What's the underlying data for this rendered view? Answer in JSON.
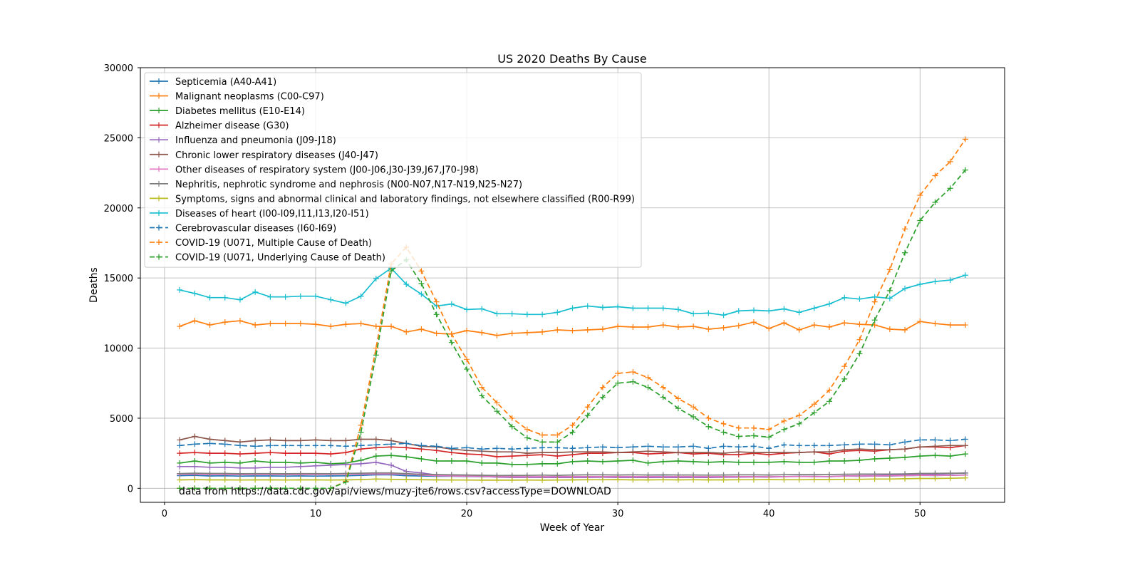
{
  "chart_data": {
    "type": "line",
    "title": "US 2020 Deaths By Cause",
    "xlabel": "Week of Year",
    "ylabel": "Deaths",
    "xlim": [
      -1.6,
      55.6
    ],
    "ylim": [
      -1000,
      30000
    ],
    "xticks": [
      0,
      10,
      20,
      30,
      40,
      50
    ],
    "yticks": [
      0,
      5000,
      10000,
      15000,
      20000,
      25000,
      30000
    ],
    "grid": true,
    "legend_position": "top-left",
    "annotation": "data from https://data.cdc.gov/api/views/muzy-jte6/rows.csv?accessType=DOWNLOAD",
    "x": [
      1,
      2,
      3,
      4,
      5,
      6,
      7,
      8,
      9,
      10,
      11,
      12,
      13,
      14,
      15,
      16,
      17,
      18,
      19,
      20,
      21,
      22,
      23,
      24,
      25,
      26,
      27,
      28,
      29,
      30,
      31,
      32,
      33,
      34,
      35,
      36,
      37,
      38,
      39,
      40,
      41,
      42,
      43,
      44,
      45,
      46,
      47,
      48,
      49,
      50,
      51,
      52,
      53
    ],
    "series": [
      {
        "name": "Septicemia (A40-A41)",
        "color": "#1f77b4",
        "dashed": false,
        "values": [
          900,
          920,
          880,
          890,
          870,
          880,
          880,
          870,
          880,
          870,
          880,
          890,
          920,
          960,
          960,
          900,
          880,
          860,
          860,
          840,
          830,
          820,
          830,
          820,
          820,
          830,
          830,
          830,
          840,
          820,
          830,
          840,
          850,
          830,
          840,
          820,
          830,
          840,
          830,
          820,
          840,
          850,
          850,
          830,
          870,
          860,
          870,
          880,
          900,
          920,
          910,
          930,
          950
        ]
      },
      {
        "name": "Malignant neoplasms (C00-C97)",
        "color": "#ff7f0e",
        "dashed": false,
        "values": [
          11550,
          11950,
          11650,
          11850,
          11950,
          11650,
          11750,
          11750,
          11750,
          11700,
          11550,
          11700,
          11750,
          11550,
          11550,
          11150,
          11350,
          11050,
          11000,
          11250,
          11100,
          10900,
          11050,
          11100,
          11150,
          11300,
          11250,
          11300,
          11350,
          11550,
          11500,
          11500,
          11650,
          11500,
          11550,
          11350,
          11450,
          11600,
          11850,
          11400,
          11800,
          11300,
          11650,
          11500,
          11800,
          11700,
          11650,
          11350,
          11300,
          11900,
          11750,
          11650,
          11650
        ]
      },
      {
        "name": "Diabetes mellitus (E10-E14)",
        "color": "#2ca02c",
        "dashed": false,
        "values": [
          1800,
          1950,
          1800,
          1850,
          1800,
          1950,
          1850,
          1850,
          1800,
          1850,
          1750,
          1800,
          2000,
          2300,
          2350,
          2250,
          2100,
          1950,
          1950,
          1950,
          1800,
          1800,
          1700,
          1700,
          1750,
          1750,
          1900,
          1950,
          1900,
          1950,
          2000,
          1800,
          1900,
          1950,
          1900,
          1850,
          1900,
          1850,
          1850,
          1850,
          1900,
          1850,
          1850,
          1950,
          1950,
          2000,
          2100,
          2150,
          2200,
          2300,
          2350,
          2300,
          2450
        ]
      },
      {
        "name": "Alzheimer disease (G30)",
        "color": "#d62728",
        "dashed": false,
        "values": [
          2500,
          2550,
          2500,
          2500,
          2450,
          2500,
          2550,
          2500,
          2500,
          2500,
          2450,
          2550,
          2800,
          2900,
          2950,
          2900,
          2800,
          2700,
          2550,
          2450,
          2400,
          2250,
          2300,
          2350,
          2400,
          2300,
          2400,
          2500,
          2500,
          2550,
          2550,
          2450,
          2500,
          2550,
          2450,
          2500,
          2400,
          2400,
          2500,
          2400,
          2500,
          2550,
          2600,
          2450,
          2650,
          2700,
          2650,
          2750,
          2800,
          2950,
          2950,
          2900,
          3050
        ]
      },
      {
        "name": "Influenza and pneumonia (J09-J18)",
        "color": "#9467bd",
        "dashed": false,
        "values": [
          1550,
          1550,
          1500,
          1500,
          1450,
          1450,
          1500,
          1500,
          1550,
          1600,
          1650,
          1700,
          1750,
          1850,
          1650,
          1200,
          1100,
          950,
          950,
          900,
          850,
          800,
          780,
          780,
          780,
          770,
          780,
          780,
          790,
          780,
          780,
          770,
          780,
          770,
          780,
          770,
          790,
          800,
          810,
          800,
          830,
          850,
          830,
          840,
          880,
          900,
          920,
          950,
          980,
          1000,
          1000,
          1050,
          1100
        ]
      },
      {
        "name": "Chronic lower respiratory diseases (J40-J47)",
        "color": "#8c564b",
        "dashed": false,
        "values": [
          3450,
          3700,
          3500,
          3400,
          3300,
          3400,
          3450,
          3400,
          3400,
          3450,
          3400,
          3400,
          3500,
          3500,
          3400,
          3200,
          3000,
          2950,
          2800,
          2700,
          2650,
          2600,
          2600,
          2500,
          2550,
          2550,
          2600,
          2600,
          2600,
          2550,
          2600,
          2650,
          2600,
          2550,
          2550,
          2550,
          2500,
          2600,
          2550,
          2550,
          2550,
          2550,
          2600,
          2600,
          2750,
          2800,
          2750,
          2750,
          2800,
          2950,
          3000,
          3050,
          3050
        ]
      },
      {
        "name": "Other diseases of respiratory system (J00-J06,J30-J39,J67,J70-J98)",
        "color": "#e377c2",
        "dashed": false,
        "values": [
          1000,
          1000,
          980,
          980,
          970,
          980,
          980,
          970,
          980,
          980,
          990,
          1000,
          1010,
          1020,
          1030,
          1000,
          950,
          900,
          880,
          860,
          850,
          840,
          830,
          830,
          830,
          830,
          840,
          840,
          840,
          840,
          840,
          840,
          840,
          830,
          840,
          830,
          840,
          840,
          840,
          830,
          840,
          850,
          850,
          840,
          870,
          880,
          880,
          890,
          900,
          930,
          920,
          920,
          940
        ]
      },
      {
        "name": "Nephritis, nephrotic syndrome and nephrosis (N00-N07,N17-N19,N25-N27)",
        "color": "#7f7f7f",
        "dashed": false,
        "values": [
          1050,
          1080,
          1060,
          1060,
          1040,
          1050,
          1050,
          1040,
          1050,
          1050,
          1040,
          1060,
          1080,
          1100,
          1100,
          1050,
          1000,
          980,
          960,
          950,
          930,
          910,
          920,
          920,
          940,
          920,
          950,
          960,
          960,
          950,
          960,
          950,
          960,
          950,
          950,
          940,
          950,
          960,
          960,
          950,
          970,
          980,
          980,
          980,
          1000,
          1010,
          1020,
          1020,
          1030,
          1060,
          1070,
          1080,
          1080
        ]
      },
      {
        "name": "Symptoms, signs and abnormal clinical and laboratory findings, not elsewhere classified (R00-R99)",
        "color": "#bcbd22",
        "dashed": false,
        "values": [
          600,
          620,
          600,
          600,
          590,
          600,
          600,
          590,
          600,
          600,
          590,
          600,
          620,
          660,
          640,
          620,
          610,
          600,
          590,
          590,
          580,
          580,
          580,
          590,
          580,
          590,
          600,
          610,
          610,
          620,
          600,
          600,
          610,
          600,
          610,
          600,
          600,
          610,
          610,
          620,
          610,
          610,
          620,
          620,
          640,
          640,
          660,
          660,
          680,
          700,
          700,
          720,
          740
        ]
      },
      {
        "name": "Diseases of heart (I00-I09,I11,I13,I20-I51)",
        "color": "#17becf",
        "dashed": false,
        "values": [
          14150,
          13900,
          13600,
          13600,
          13450,
          14000,
          13650,
          13650,
          13700,
          13700,
          13450,
          13200,
          13700,
          14950,
          15700,
          14550,
          13850,
          13000,
          13150,
          12750,
          12800,
          12450,
          12450,
          12400,
          12400,
          12550,
          12850,
          13000,
          12900,
          12950,
          12850,
          12850,
          12850,
          12750,
          12450,
          12500,
          12350,
          12650,
          12700,
          12650,
          12800,
          12550,
          12850,
          13150,
          13600,
          13500,
          13650,
          13550,
          14250,
          14550,
          14750,
          14850,
          15200
        ]
      },
      {
        "name": "Cerebrovascular diseases (I60-I69)",
        "color": "#1f77b4",
        "dashed": true,
        "values": [
          3050,
          3150,
          3200,
          3150,
          3050,
          3000,
          3050,
          3050,
          3050,
          3050,
          3050,
          3000,
          3050,
          3100,
          3150,
          3200,
          3050,
          3000,
          2850,
          2900,
          2800,
          2850,
          2800,
          2850,
          2900,
          2900,
          2850,
          2900,
          2950,
          2900,
          2950,
          3000,
          2950,
          2950,
          3000,
          2850,
          3000,
          2950,
          3000,
          2850,
          3100,
          3050,
          3050,
          3050,
          3100,
          3150,
          3150,
          3100,
          3300,
          3450,
          3450,
          3400,
          3500
        ]
      },
      {
        "name": "COVID-19 (U071, Multiple Cause of Death)",
        "color": "#ff7f0e",
        "dashed": true,
        "values": [
          0,
          0,
          0,
          0,
          0,
          0,
          0,
          0,
          0,
          0,
          0,
          500,
          4500,
          10000,
          16000,
          17200,
          15500,
          13300,
          11000,
          9200,
          7200,
          6100,
          5000,
          4200,
          3800,
          3800,
          4500,
          5800,
          7200,
          8200,
          8300,
          7900,
          7200,
          6400,
          5800,
          5000,
          4600,
          4300,
          4300,
          4200,
          4800,
          5200,
          6000,
          7000,
          8700,
          10600,
          13300,
          15600,
          18500,
          20900,
          22300,
          23300,
          24900
        ]
      },
      {
        "name": "COVID-19 (U071, Underlying Cause of Death)",
        "color": "#2ca02c",
        "dashed": true,
        "values": [
          0,
          0,
          0,
          0,
          0,
          0,
          0,
          0,
          0,
          0,
          0,
          450,
          4000,
          9500,
          15500,
          16300,
          14600,
          12400,
          10400,
          8500,
          6600,
          5500,
          4400,
          3600,
          3300,
          3300,
          4000,
          5200,
          6500,
          7500,
          7600,
          7200,
          6500,
          5700,
          5100,
          4400,
          4000,
          3700,
          3750,
          3650,
          4200,
          4600,
          5400,
          6200,
          7800,
          9600,
          12000,
          14100,
          16800,
          19100,
          20400,
          21400,
          22700
        ]
      }
    ]
  }
}
